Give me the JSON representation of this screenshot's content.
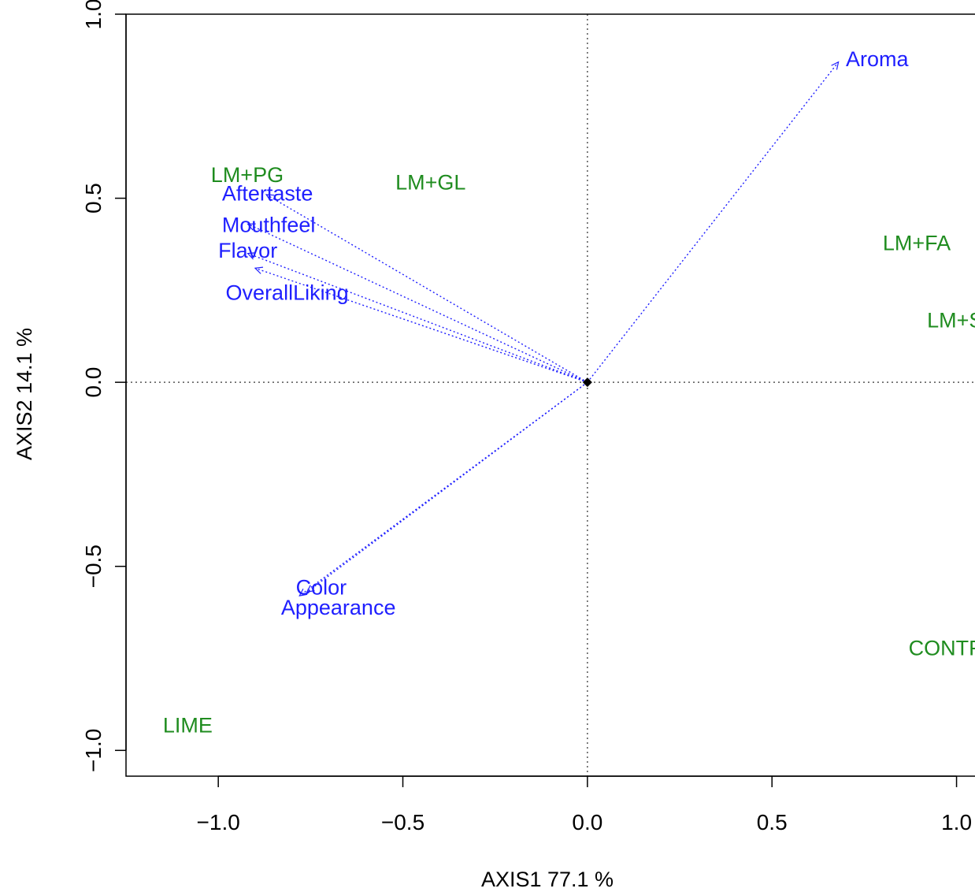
{
  "chart_data": {
    "type": "scatter",
    "title": "",
    "xlabel": "AXIS1 77.1 %",
    "ylabel": "AXIS2 14.1 %",
    "xlim": [
      -1.25,
      1.05
    ],
    "ylim": [
      -1.07,
      1.0
    ],
    "x_ticks": [
      "−1.0",
      "−0.5",
      "0.0",
      "0.5",
      "1.0"
    ],
    "x_tick_values": [
      -1.0,
      -0.5,
      0.0,
      0.5,
      1.0
    ],
    "y_ticks": [
      "−1.0",
      "−0.5",
      "0.0",
      "0.5",
      "1.0"
    ],
    "y_tick_values": [
      -1.0,
      -0.5,
      0.0,
      0.5,
      1.0
    ],
    "reference_lines": {
      "x": 0,
      "y": 0,
      "style": "dotted"
    },
    "origin_marker": {
      "x": 0,
      "y": 0,
      "shape": "diamond"
    },
    "treatments": {
      "color": "#1f8c1f",
      "points": [
        {
          "label": "LM+PG",
          "x": -1.02,
          "y": 0.565
        },
        {
          "label": "LM+GL",
          "x": -0.52,
          "y": 0.545
        },
        {
          "label": "LM+FA",
          "x": 0.8,
          "y": 0.38
        },
        {
          "label": "LM+SB",
          "x": 0.92,
          "y": 0.17
        },
        {
          "label": "CONTROL",
          "x": 0.87,
          "y": -0.72
        },
        {
          "label": "LIME",
          "x": -1.15,
          "y": -0.93
        }
      ]
    },
    "attributes": {
      "color": "#1f1fff",
      "vectors": [
        {
          "label": "Aroma",
          "x": 0.68,
          "y": 0.87,
          "label_x": 0.7,
          "label_y": 0.88
        },
        {
          "label": "Aftertaste",
          "x": -0.87,
          "y": 0.51,
          "label_x": -0.99,
          "label_y": 0.515
        },
        {
          "label": "Mouthfeel",
          "x": -0.92,
          "y": 0.43,
          "label_x": -0.99,
          "label_y": 0.43
        },
        {
          "label": "Flavor",
          "x": -0.92,
          "y": 0.35,
          "label_x": -1.0,
          "label_y": 0.36
        },
        {
          "label": "OverallLiking",
          "x": -0.9,
          "y": 0.31,
          "label_x": -0.98,
          "label_y": 0.245
        },
        {
          "label": "Color",
          "x": -0.78,
          "y": -0.58,
          "label_x": -0.79,
          "label_y": -0.555
        },
        {
          "label": "Appearance",
          "x": -0.76,
          "y": -0.57,
          "label_x": -0.83,
          "label_y": -0.61
        }
      ]
    }
  }
}
